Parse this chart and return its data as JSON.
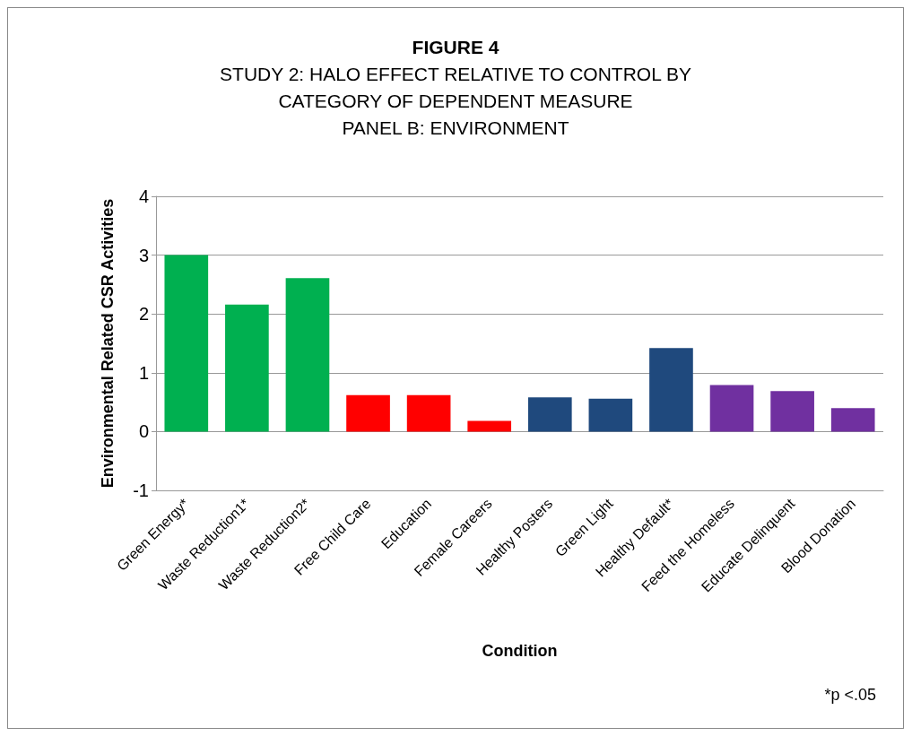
{
  "chart_data": {
    "type": "bar",
    "title": "FIGURE 4",
    "subtitle": "STUDY 2: HALO EFFECT RELATIVE TO CONTROL BY\nCATEGORY OF DEPENDENT MEASURE\nPANEL B: ENVIRONMENT",
    "xlabel": "Condition",
    "ylabel": "Environmental Related CSR Activities",
    "categories": [
      "Green Energy*",
      "Waste Reduction1*",
      "Waste Reduction2*",
      "Free Child Care",
      "Education",
      "Female Careers",
      "Healthy Posters",
      "Green Light",
      "Healthy Default*",
      "Feed the Homeless",
      "Educate Delinquent",
      "Blood Donation"
    ],
    "values": [
      3.0,
      2.16,
      2.61,
      0.62,
      0.62,
      0.18,
      0.58,
      0.56,
      1.42,
      0.79,
      0.69,
      0.4
    ],
    "colors": [
      "#00b050",
      "#00b050",
      "#00b050",
      "#ff0000",
      "#ff0000",
      "#ff0000",
      "#1f497d",
      "#1f497d",
      "#1f497d",
      "#7030a0",
      "#7030a0",
      "#7030a0"
    ],
    "ylim": [
      -1,
      4
    ],
    "yticks": [
      -1,
      0,
      1,
      2,
      3,
      4
    ],
    "grid": "y",
    "annotations": [
      "*p <.05"
    ]
  }
}
